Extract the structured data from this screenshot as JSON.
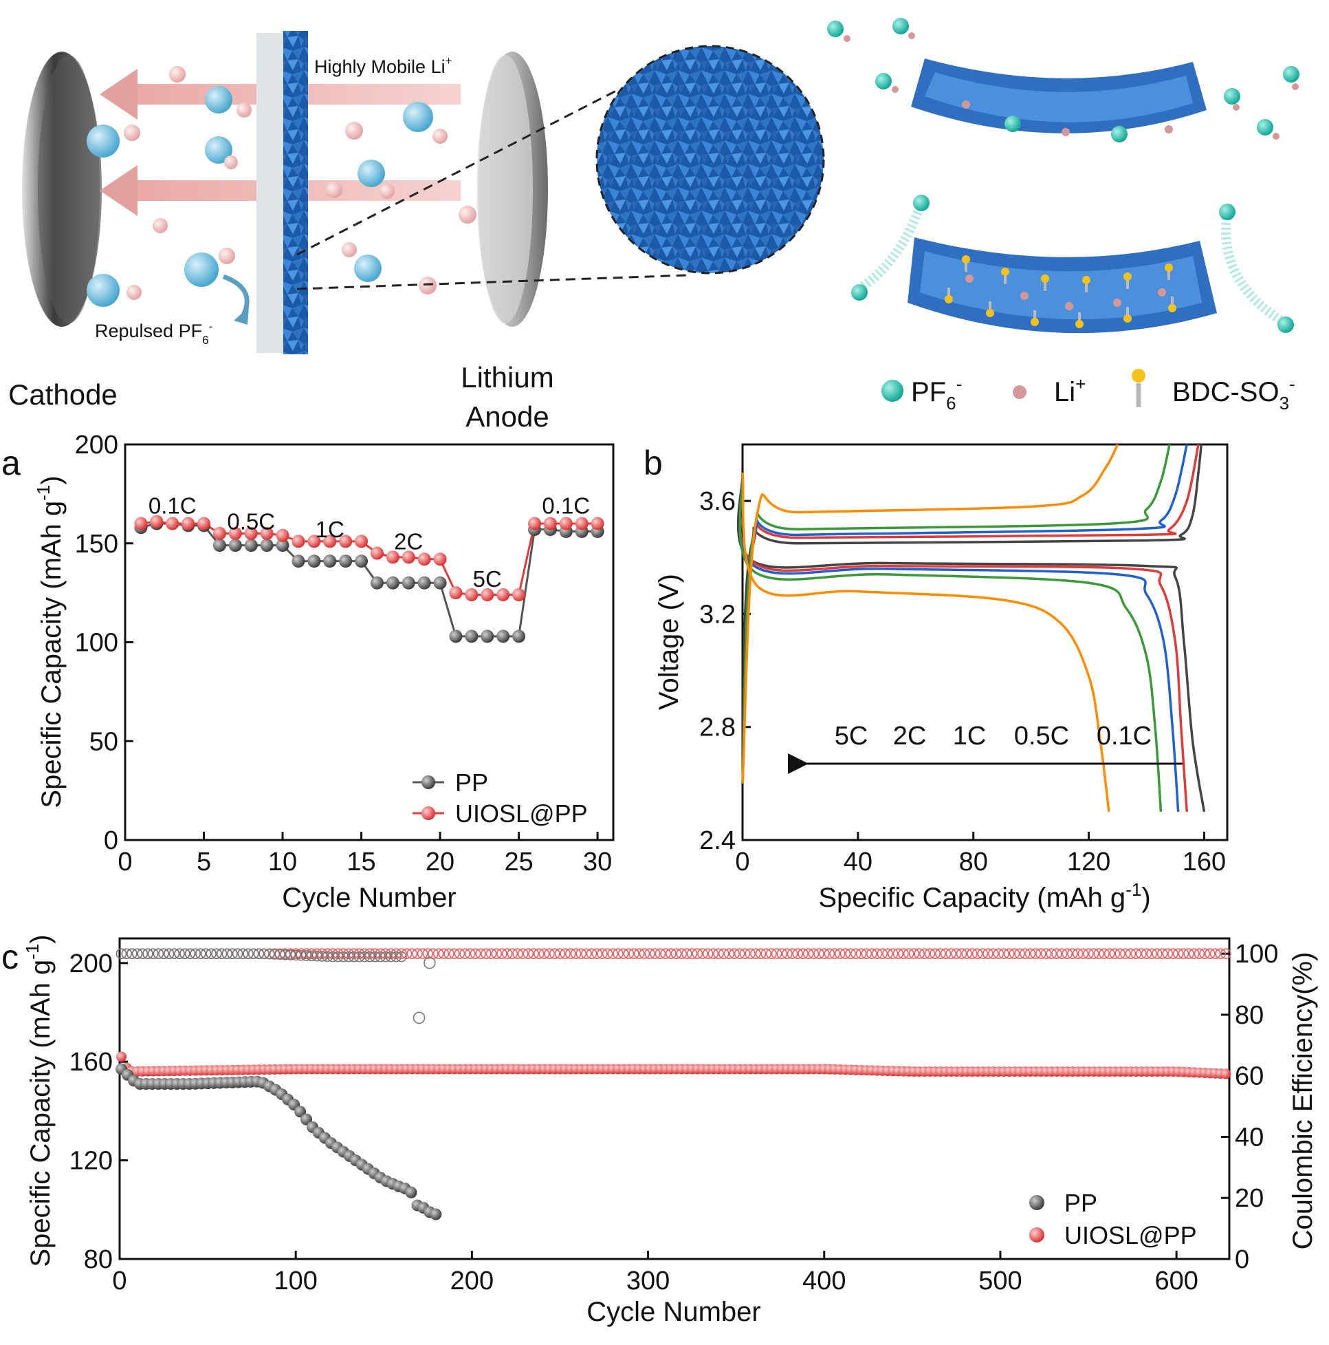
{
  "schematic": {
    "highly_mobile": "Highly Mobile Li",
    "highly_mobile_sup": "+",
    "repulsed": "Repulsed PF",
    "repulsed_sub": "6",
    "repulsed_sup": "-",
    "cathode": "Cathode",
    "anode_line1": "Lithium",
    "anode_line2": "Anode",
    "legend": {
      "pf6": "PF",
      "pf6_sub": "6",
      "pf6_sup": "-",
      "li": "Li",
      "li_sup": "+",
      "bdc": "BDC-SO",
      "bdc_sub": "3",
      "bdc_sup": "-"
    },
    "colors": {
      "teal": "#1fb8a8",
      "pink": "#d49898",
      "yellow": "#f4c21a",
      "blue": "#2e6fc2",
      "membrane": "#2a70c8"
    }
  },
  "chart_data": [
    {
      "id": "a",
      "panel_label": "a",
      "type": "line",
      "xlabel": "Cycle Number",
      "ylabel": "Specific Capacity (mAh g",
      "ylabel_sup": "-1",
      "ylabel_end": ")",
      "xlim": [
        0,
        31
      ],
      "ylim": [
        0,
        200
      ],
      "xticks": [
        0,
        5,
        10,
        15,
        20,
        25,
        30
      ],
      "yticks": [
        0,
        50,
        100,
        150,
        200
      ],
      "rate_labels": [
        {
          "text": "0.1C",
          "x": 3,
          "y": 165
        },
        {
          "text": "0.5C",
          "x": 8,
          "y": 157
        },
        {
          "text": "1C",
          "x": 13,
          "y": 153
        },
        {
          "text": "2C",
          "x": 18,
          "y": 147
        },
        {
          "text": "5C",
          "x": 23,
          "y": 128
        },
        {
          "text": "0.1C",
          "x": 28,
          "y": 165
        }
      ],
      "legend_position": "bottom-right",
      "series": [
        {
          "name": "PP",
          "color": "#555555",
          "x": [
            1,
            2,
            3,
            4,
            5,
            6,
            7,
            8,
            9,
            10,
            11,
            12,
            13,
            14,
            15,
            16,
            17,
            18,
            19,
            20,
            21,
            22,
            23,
            24,
            25,
            26,
            27,
            28,
            29,
            30
          ],
          "y": [
            158,
            160,
            160,
            159,
            159,
            149,
            149,
            149,
            149,
            149,
            141,
            141,
            141,
            141,
            141,
            130,
            130,
            130,
            130,
            130,
            103,
            103,
            103,
            103,
            103,
            157,
            157,
            156,
            156,
            156
          ]
        },
        {
          "name": "UIOSL@PP",
          "color": "#e03a3a",
          "x": [
            1,
            2,
            3,
            4,
            5,
            6,
            7,
            8,
            9,
            10,
            11,
            12,
            13,
            14,
            15,
            16,
            17,
            18,
            19,
            20,
            21,
            22,
            23,
            24,
            25,
            26,
            27,
            28,
            29,
            30
          ],
          "y": [
            160,
            161,
            160,
            160,
            160,
            155,
            155,
            155,
            155,
            154,
            151,
            151,
            151,
            151,
            151,
            145,
            143,
            143,
            142,
            142,
            125,
            124,
            124,
            124,
            124,
            160,
            160,
            160,
            160,
            160
          ]
        }
      ]
    },
    {
      "id": "b",
      "panel_label": "b",
      "type": "line",
      "xlabel": "Specific Capacity (mAh g",
      "xlabel_sup": "-1",
      "xlabel_end": ")",
      "ylabel": "Voltage (V)",
      "xlim": [
        0,
        168
      ],
      "ylim": [
        2.4,
        3.8
      ],
      "xticks": [
        0,
        40,
        80,
        120,
        160
      ],
      "yticks": [
        2.4,
        2.8,
        3.2,
        3.6
      ],
      "rate_labels": [
        "5C",
        "2C",
        "1C",
        "0.5C",
        "0.1C"
      ],
      "series": [
        {
          "name": "0.1C",
          "color": "#444444",
          "charge": [
            [
              0,
              2.6
            ],
            [
              3,
              3.44
            ],
            [
              20,
              3.45
            ],
            [
              140,
              3.46
            ],
            [
              152,
              3.48
            ],
            [
              156,
              3.55
            ],
            [
              158,
              3.7
            ],
            [
              159,
              3.8
            ]
          ],
          "discharge": [
            [
              0,
              3.7
            ],
            [
              3,
              3.39
            ],
            [
              50,
              3.38
            ],
            [
              140,
              3.37
            ],
            [
              150,
              3.33
            ],
            [
              153,
              3.1
            ],
            [
              156,
              2.75
            ],
            [
              160,
              2.5
            ]
          ]
        },
        {
          "name": "0.5C",
          "color": "#e03a3a",
          "charge": [
            [
              0,
              2.6
            ],
            [
              4,
              3.46
            ],
            [
              20,
              3.47
            ],
            [
              138,
              3.48
            ],
            [
              148,
              3.5
            ],
            [
              154,
              3.6
            ],
            [
              158,
              3.8
            ]
          ],
          "discharge": [
            [
              0,
              3.7
            ],
            [
              4,
              3.38
            ],
            [
              50,
              3.37
            ],
            [
              135,
              3.36
            ],
            [
              145,
              3.3
            ],
            [
              150,
              3.1
            ],
            [
              152,
              2.8
            ],
            [
              154,
              2.5
            ]
          ]
        },
        {
          "name": "1C",
          "color": "#2060d0",
          "charge": [
            [
              0,
              2.6
            ],
            [
              4,
              3.47
            ],
            [
              20,
              3.48
            ],
            [
              134,
              3.5
            ],
            [
              145,
              3.53
            ],
            [
              150,
              3.62
            ],
            [
              154,
              3.8
            ]
          ],
          "discharge": [
            [
              0,
              3.7
            ],
            [
              4,
              3.37
            ],
            [
              50,
              3.36
            ],
            [
              130,
              3.34
            ],
            [
              140,
              3.27
            ],
            [
              146,
              3.1
            ],
            [
              149,
              2.8
            ],
            [
              151,
              2.5
            ]
          ]
        },
        {
          "name": "2C",
          "color": "#3a9a3a",
          "charge": [
            [
              0,
              2.6
            ],
            [
              4,
              3.49
            ],
            [
              20,
              3.5
            ],
            [
              128,
              3.52
            ],
            [
              140,
              3.57
            ],
            [
              145,
              3.67
            ],
            [
              148,
              3.8
            ]
          ],
          "discharge": [
            [
              0,
              3.7
            ],
            [
              4,
              3.35
            ],
            [
              50,
              3.34
            ],
            [
              120,
              3.31
            ],
            [
              133,
              3.22
            ],
            [
              140,
              3.05
            ],
            [
              143,
              2.8
            ],
            [
              145,
              2.5
            ]
          ]
        },
        {
          "name": "5C",
          "color": "#ff8c00",
          "charge": [
            [
              0,
              2.6
            ],
            [
              5,
              3.55
            ],
            [
              20,
              3.56
            ],
            [
              100,
              3.58
            ],
            [
              118,
              3.62
            ],
            [
              126,
              3.72
            ],
            [
              130,
              3.8
            ]
          ],
          "discharge": [
            [
              0,
              3.7
            ],
            [
              5,
              3.3
            ],
            [
              40,
              3.28
            ],
            [
              90,
              3.25
            ],
            [
              110,
              3.17
            ],
            [
              120,
              2.98
            ],
            [
              124,
              2.75
            ],
            [
              127,
              2.5
            ]
          ]
        }
      ]
    },
    {
      "id": "c",
      "panel_label": "c",
      "type": "scatter",
      "xlabel": "Cycle Number",
      "ylabel": "Specific Capacity (mAh g",
      "ylabel_sup": "-1",
      "ylabel_end": ")",
      "y2label": "Coulombic Efficiency(%)",
      "xlim": [
        0,
        630
      ],
      "ylim": [
        80,
        210
      ],
      "y2lim": [
        0,
        105
      ],
      "xticks": [
        0,
        100,
        200,
        300,
        400,
        500,
        600
      ],
      "yticks": [
        80,
        120,
        160,
        200
      ],
      "y2ticks": [
        0,
        20,
        40,
        60,
        80,
        100
      ],
      "legend_position": "bottom-right",
      "series": [
        {
          "name": "PP",
          "color": "#555555",
          "capacity_points": [
            [
              1,
              157
            ],
            [
              10,
              151
            ],
            [
              40,
              151
            ],
            [
              80,
              152
            ],
            [
              90,
              148
            ],
            [
              100,
              142
            ],
            [
              110,
              133
            ],
            [
              120,
              127
            ],
            [
              130,
              122
            ],
            [
              140,
              117
            ],
            [
              150,
              112
            ],
            [
              160,
              109
            ],
            [
              165,
              108
            ],
            [
              168,
              102
            ],
            [
              172,
              101
            ],
            [
              176,
              99
            ],
            [
              180,
              98
            ]
          ],
          "ce_points": [
            [
              1,
              100
            ],
            [
              80,
              100
            ],
            [
              120,
              99
            ],
            [
              160,
              99
            ],
            [
              170,
              79
            ],
            [
              175,
              97
            ]
          ]
        },
        {
          "name": "UIOSL@PP",
          "color": "#e03a3a",
          "capacity_points": [
            [
              1,
              162
            ],
            [
              5,
              156
            ],
            [
              100,
              157
            ],
            [
              200,
              157
            ],
            [
              300,
              157
            ],
            [
              400,
              157
            ],
            [
              450,
              156
            ],
            [
              500,
              156
            ],
            [
              600,
              156
            ],
            [
              630,
              155
            ]
          ],
          "ce_points": [
            [
              1,
              100
            ],
            [
              630,
              100
            ]
          ]
        }
      ]
    }
  ]
}
